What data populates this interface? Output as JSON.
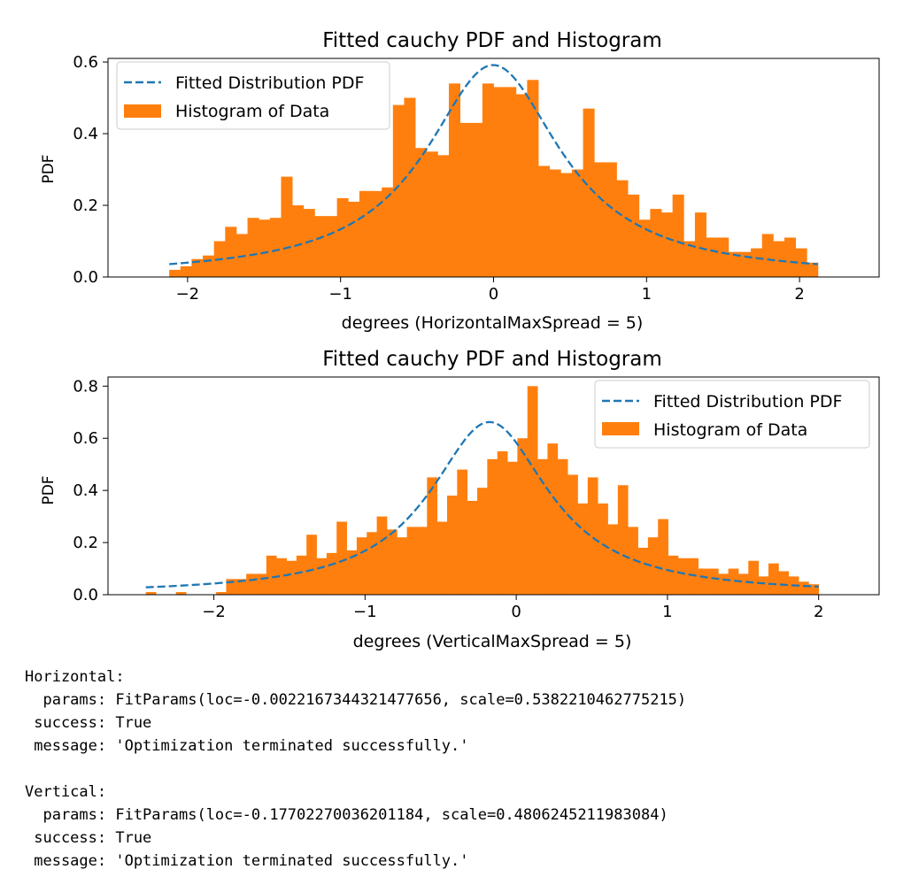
{
  "colors": {
    "histogram": "#ff7f0e",
    "pdf_line": "#1f77b4"
  },
  "chart_data": [
    {
      "type": "histogram",
      "title": "Fitted cauchy PDF and Histogram",
      "xlabel": "degrees (HorizontalMaxSpread = 5)",
      "ylabel": "PDF",
      "xlim": [
        -2.52,
        2.52
      ],
      "ylim": [
        0,
        0.61
      ],
      "xticks": [
        -2,
        -1,
        0,
        1,
        2
      ],
      "xtick_labels": [
        "−2",
        "−1",
        "0",
        "1",
        "2"
      ],
      "yticks": [
        0.0,
        0.2,
        0.4,
        0.6
      ],
      "ytick_labels": [
        "0.0",
        "0.2",
        "0.4",
        "0.6"
      ],
      "legend_position": "upper-left",
      "legend": {
        "line_label": "Fitted Distribution PDF",
        "hist_label": "Histogram of Data"
      },
      "hist_range": [
        -2.12,
        2.12
      ],
      "bin_heights": [
        0.02,
        0.03,
        0.05,
        0.06,
        0.1,
        0.14,
        0.12,
        0.165,
        0.16,
        0.165,
        0.28,
        0.2,
        0.19,
        0.17,
        0.17,
        0.22,
        0.21,
        0.24,
        0.24,
        0.25,
        0.48,
        0.5,
        0.36,
        0.35,
        0.34,
        0.54,
        0.43,
        0.43,
        0.54,
        0.53,
        0.53,
        0.51,
        0.55,
        0.31,
        0.3,
        0.29,
        0.3,
        0.47,
        0.32,
        0.32,
        0.27,
        0.23,
        0.16,
        0.19,
        0.18,
        0.23,
        0.1,
        0.18,
        0.11,
        0.11,
        0.07,
        0.07,
        0.08,
        0.12,
        0.1,
        0.11,
        0.08,
        0.04
      ],
      "fit": {
        "loc": -0.0022167344321477656,
        "scale": 0.5382210462775215,
        "x_range": [
          -2.12,
          2.12
        ]
      }
    },
    {
      "type": "histogram",
      "title": "Fitted cauchy PDF and Histogram",
      "xlabel": "degrees (VerticalMaxSpread = 5)",
      "ylabel": "PDF",
      "xlim": [
        -2.7,
        2.4
      ],
      "ylim": [
        0,
        0.835
      ],
      "xticks": [
        -2,
        -1,
        0,
        1,
        2
      ],
      "xtick_labels": [
        "−2",
        "−1",
        "0",
        "1",
        "2"
      ],
      "yticks": [
        0.0,
        0.2,
        0.4,
        0.6,
        0.8
      ],
      "ytick_labels": [
        "0.0",
        "0.2",
        "0.4",
        "0.6",
        "0.8"
      ],
      "legend_position": "upper-right",
      "legend": {
        "line_label": "Fitted Distribution PDF",
        "hist_label": "Histogram of Data"
      },
      "hist_range": [
        -2.45,
        2.0
      ],
      "bin_heights": [
        0.01,
        0.0,
        0.0,
        0.01,
        0.0,
        0.0,
        0.0,
        0.01,
        0.06,
        0.06,
        0.08,
        0.08,
        0.15,
        0.14,
        0.13,
        0.15,
        0.23,
        0.14,
        0.16,
        0.28,
        0.17,
        0.22,
        0.24,
        0.3,
        0.25,
        0.22,
        0.26,
        0.26,
        0.45,
        0.28,
        0.38,
        0.48,
        0.36,
        0.41,
        0.52,
        0.55,
        0.51,
        0.6,
        0.8,
        0.52,
        0.58,
        0.52,
        0.46,
        0.35,
        0.45,
        0.35,
        0.27,
        0.42,
        0.26,
        0.18,
        0.22,
        0.29,
        0.15,
        0.14,
        0.14,
        0.1,
        0.1,
        0.08,
        0.1,
        0.08,
        0.13,
        0.07,
        0.12,
        0.09,
        0.07,
        0.05,
        0.04
      ],
      "fit": {
        "loc": -0.17702270036201184,
        "scale": 0.4806245211983084,
        "x_range": [
          -2.45,
          2.0
        ]
      }
    }
  ],
  "output": {
    "lines": [
      "Horizontal:",
      "  params: FitParams(loc=-0.0022167344321477656, scale=0.5382210462775215)",
      " success: True",
      " message: 'Optimization terminated successfully.'",
      "",
      "Vertical:",
      "  params: FitParams(loc=-0.17702270036201184, scale=0.4806245211983084)",
      " success: True",
      " message: 'Optimization terminated successfully.'"
    ]
  }
}
